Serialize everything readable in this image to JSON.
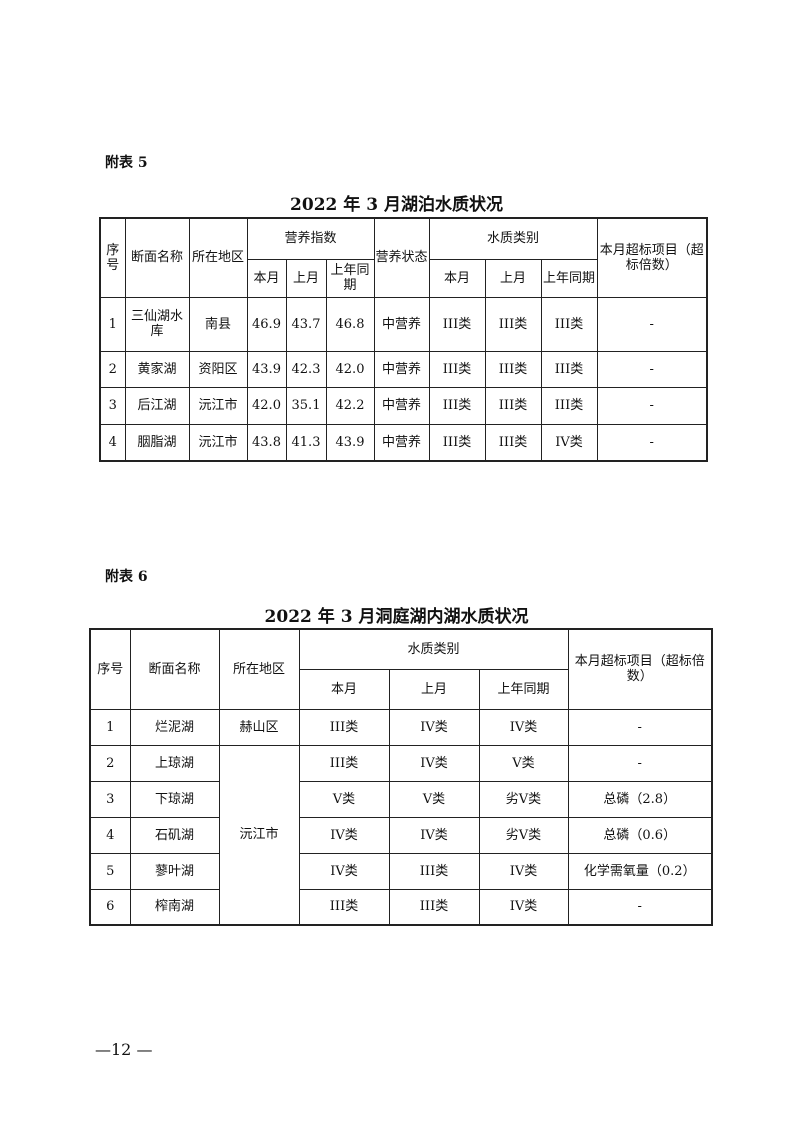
{
  "table5": {
    "label": "附表 5",
    "title": "2022 年 3 月湖泊水质状况",
    "headers": {
      "seq": "序号",
      "name": "断面名称",
      "region": "所在地区",
      "trophic_index": "营养指数",
      "trophic_state": "营养状态",
      "water_class": "水质类别",
      "exceed": "本月超标项目（超标倍数）",
      "this_month": "本月",
      "last_month": "上月",
      "last_year": "上年同期"
    },
    "rows": [
      {
        "seq": "1",
        "name": "三仙湖水库",
        "region": "南县",
        "ti": [
          "46.9",
          "43.7",
          "46.8"
        ],
        "state": "中营养",
        "wc": [
          "III类",
          "III类",
          "III类"
        ],
        "exceed": "-"
      },
      {
        "seq": "2",
        "name": "黄家湖",
        "region": "资阳区",
        "ti": [
          "43.9",
          "42.3",
          "42.0"
        ],
        "state": "中营养",
        "wc": [
          "III类",
          "III类",
          "III类"
        ],
        "exceed": "-"
      },
      {
        "seq": "3",
        "name": "后江湖",
        "region": "沅江市",
        "ti": [
          "42.0",
          "35.1",
          "42.2"
        ],
        "state": "中营养",
        "wc": [
          "III类",
          "III类",
          "III类"
        ],
        "exceed": "-"
      },
      {
        "seq": "4",
        "name": "胭脂湖",
        "region": "沅江市",
        "ti": [
          "43.8",
          "41.3",
          "43.9"
        ],
        "state": "中营养",
        "wc": [
          "III类",
          "III类",
          "IV类"
        ],
        "exceed": "-"
      }
    ]
  },
  "table6": {
    "label": "附表 6",
    "title": "2022 年 3 月洞庭湖内湖水质状况",
    "headers": {
      "seq": "序号",
      "name": "断面名称",
      "region": "所在地区",
      "water_class": "水质类别",
      "exceed": "本月超标项目（超标倍数）",
      "this_month": "本月",
      "last_month": "上月",
      "last_year": "上年同期"
    },
    "rows": [
      {
        "seq": "1",
        "name": "烂泥湖",
        "region": "赫山区",
        "wc": [
          "III类",
          "IV类",
          "IV类"
        ],
        "exceed": "-"
      },
      {
        "seq": "2",
        "name": "上琼湖",
        "region": "沅江市",
        "wc": [
          "III类",
          "IV类",
          "V类"
        ],
        "exceed": "-"
      },
      {
        "seq": "3",
        "name": "下琼湖",
        "wc": [
          "V类",
          "V类",
          "劣V类"
        ],
        "exceed": "总磷（2.8）"
      },
      {
        "seq": "4",
        "name": "石矶湖",
        "wc": [
          "IV类",
          "IV类",
          "劣V类"
        ],
        "exceed": "总磷（0.6）"
      },
      {
        "seq": "5",
        "name": "蓼叶湖",
        "wc": [
          "IV类",
          "III类",
          "IV类"
        ],
        "exceed": "化学需氧量（0.2）"
      },
      {
        "seq": "6",
        "name": "榨南湖",
        "wc": [
          "III类",
          "III类",
          "IV类"
        ],
        "exceed": "-"
      }
    ]
  },
  "page_number": "—12 —"
}
